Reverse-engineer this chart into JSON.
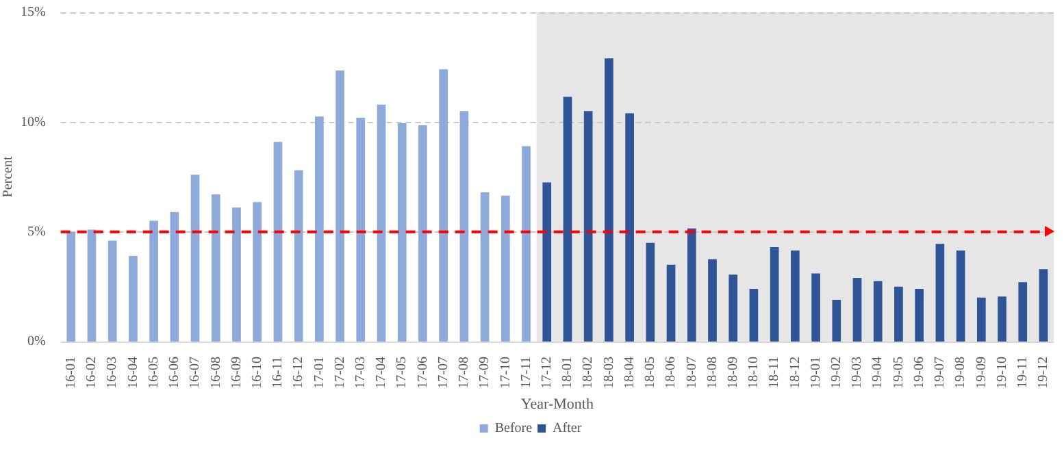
{
  "chart_data": {
    "type": "bar",
    "xlabel": "Year-Month",
    "ylabel": "Percent",
    "categories": [
      "16-01",
      "16-02",
      "16-03",
      "16-04",
      "16-05",
      "16-06",
      "16-07",
      "16-08",
      "16-09",
      "16-10",
      "16-11",
      "16-12",
      "17-01",
      "17-02",
      "17-03",
      "17-04",
      "17-05",
      "17-06",
      "17-07",
      "17-08",
      "17-09",
      "17-10",
      "17-11",
      "17-12",
      "18-01",
      "18-02",
      "18-03",
      "18-04",
      "18-05",
      "18-06",
      "18-07",
      "18-08",
      "18-09",
      "18-10",
      "18-11",
      "18-12",
      "19-01",
      "19-02",
      "19-03",
      "19-04",
      "19-05",
      "19-06",
      "19-07",
      "19-08",
      "19-09",
      "19-10",
      "19-11",
      "19-12"
    ],
    "series": [
      {
        "name": "Before",
        "color": "#8eaadb",
        "values": [
          5.0,
          5.1,
          4.6,
          3.9,
          5.5,
          5.9,
          7.6,
          6.7,
          6.1,
          6.35,
          9.1,
          7.8,
          10.25,
          12.35,
          10.2,
          10.8,
          9.95,
          9.85,
          12.4,
          10.5,
          6.8,
          6.65,
          8.9,
          null,
          null,
          null,
          null,
          null,
          null,
          null,
          null,
          null,
          null,
          null,
          null,
          null,
          null,
          null,
          null,
          null,
          null,
          null,
          null,
          null,
          null,
          null,
          null,
          null
        ]
      },
      {
        "name": "After",
        "color": "#2f5597",
        "values": [
          null,
          null,
          null,
          null,
          null,
          null,
          null,
          null,
          null,
          null,
          null,
          null,
          null,
          null,
          null,
          null,
          null,
          null,
          null,
          null,
          null,
          null,
          null,
          7.25,
          11.15,
          10.5,
          12.9,
          10.4,
          4.5,
          3.5,
          5.15,
          3.75,
          3.05,
          2.4,
          4.3,
          4.15,
          3.1,
          1.9,
          2.9,
          2.75,
          2.5,
          2.4,
          4.45,
          4.15,
          2.0,
          2.05,
          2.7,
          3.3
        ]
      }
    ],
    "ylim": [
      0,
      15
    ],
    "yticks": [
      {
        "value": 0,
        "label": "0%"
      },
      {
        "value": 5,
        "label": "5%"
      },
      {
        "value": 10,
        "label": "10%"
      },
      {
        "value": 15,
        "label": "15%"
      }
    ],
    "grid": "y",
    "legend": "bottom",
    "ref_lines": [
      {
        "axis": "y",
        "value": 5,
        "label": null,
        "color": "#ff0000",
        "line_style": "dashed"
      }
    ],
    "bands": [
      {
        "axis": "x",
        "from": "17-12",
        "to": "19-12",
        "label": null,
        "color": "#e6e6e6"
      }
    ]
  }
}
